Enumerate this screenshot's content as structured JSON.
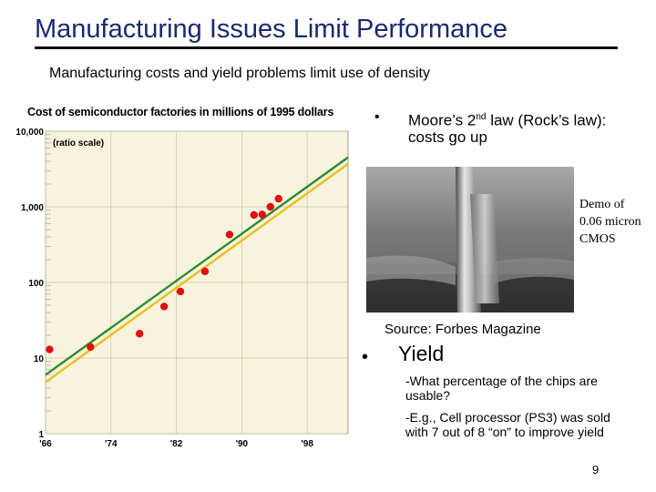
{
  "slide": {
    "title": "Manufacturing Issues Limit Performance",
    "subtitle": "Manufacturing costs and yield problems limit use of density",
    "page_number": "9"
  },
  "bullets": {
    "b1_marker": "•",
    "b1_pre": "Moore’s 2",
    "b1_sup": "nd",
    "b1_post": " law (Rock’s law): costs go up",
    "b2_marker": "•",
    "b2_text": "Yield",
    "sub1": "-What percentage of the chips are usable?",
    "sub2": "-E.g., Cell processor (PS3) was sold with 7 out of 8 “on” to improve yield"
  },
  "image": {
    "caption": "Demo of 0.06 micron CMOS",
    "source": "Source: Forbes Magazine"
  },
  "chart_data": {
    "type": "scatter",
    "title": "Cost of semiconductor factories in millions of 1995 dollars",
    "annotation": "(ratio scale)",
    "y_scale": "log",
    "ylim": [
      1,
      10000
    ],
    "xlim": [
      1966,
      2003
    ],
    "y_ticks": [
      1,
      10,
      100,
      1000,
      10000
    ],
    "y_tick_labels": [
      "1",
      "10",
      "100",
      "1,000",
      "10,000"
    ],
    "x_ticks": [
      1966,
      1974,
      1982,
      1990,
      1998
    ],
    "x_tick_labels": [
      "'66",
      "'74",
      "'82",
      "'90",
      "'98"
    ],
    "background_color": "#f7f3dc",
    "grid": true,
    "points": [
      {
        "x": 1966.5,
        "y": 13
      },
      {
        "x": 1971.5,
        "y": 14
      },
      {
        "x": 1977.5,
        "y": 21
      },
      {
        "x": 1980.5,
        "y": 48
      },
      {
        "x": 1982.5,
        "y": 76
      },
      {
        "x": 1985.5,
        "y": 140
      },
      {
        "x": 1988.5,
        "y": 430
      },
      {
        "x": 1991.5,
        "y": 780
      },
      {
        "x": 1992.5,
        "y": 790
      },
      {
        "x": 1993.5,
        "y": 1000
      },
      {
        "x": 1994.5,
        "y": 1280
      }
    ],
    "point_color": "#e01010",
    "trend_lines": [
      {
        "color": "#2e8b2e",
        "x": [
          1966,
          2003
        ],
        "y": [
          6.0,
          4500
        ]
      },
      {
        "color": "#e8c020",
        "x": [
          1966,
          2003
        ],
        "y": [
          4.8,
          3700
        ]
      }
    ]
  }
}
